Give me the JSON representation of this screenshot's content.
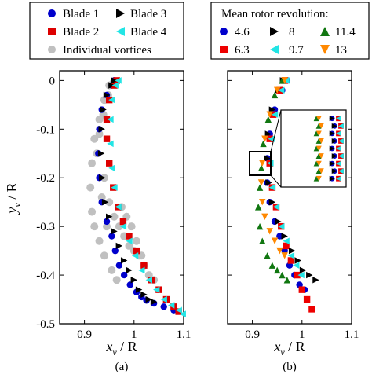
{
  "colors": {
    "blade1": "#0000cc",
    "blade2": "#dd0000",
    "blade3": "#000000",
    "blade4": "#22e5e5",
    "individual": "#c0c0c0",
    "rev46": "#0000cc",
    "rev63": "#ee0000",
    "rev8": "#000000",
    "rev97": "#22e5e5",
    "rev114": "#117711",
    "rev13": "#ff8800"
  },
  "chart_data": [
    {
      "type": "scatter",
      "panel_label": "(a)",
      "xlabel_var": "x",
      "xlabel_sub": "v",
      "xlabel_den": " / R",
      "ylabel_var": "y",
      "ylabel_sub": "v",
      "ylabel_den": " / R",
      "xlim": [
        0.85,
        1.1
      ],
      "ylim": [
        -0.5,
        0.02
      ],
      "xticks": [
        "0.9",
        "1",
        "1.1"
      ],
      "yticks": [
        "0",
        "-0.1",
        "-0.2",
        "-0.3",
        "-0.4",
        "-0.5"
      ],
      "legend": {
        "placement": "top",
        "entries": [
          "Blade 1",
          "Blade 3",
          "Blade 2",
          "Blade 4",
          "Individual vortices"
        ]
      },
      "series": [
        {
          "name": "Blade 1",
          "marker": "circle",
          "color": "#0000cc",
          "x": [
            0.96,
            0.955,
            0.945,
            0.935,
            0.93,
            0.928,
            0.93,
            0.935,
            0.945,
            0.955,
            0.962,
            0.97,
            0.98,
            0.992,
            1.005,
            1.015,
            1.025,
            1.04,
            1.06,
            1.08
          ],
          "y": [
            0.0,
            -0.01,
            -0.03,
            -0.06,
            -0.1,
            -0.15,
            -0.2,
            -0.25,
            -0.29,
            -0.32,
            -0.35,
            -0.38,
            -0.4,
            -0.42,
            -0.435,
            -0.445,
            -0.452,
            -0.458,
            -0.465,
            -0.472
          ]
        },
        {
          "name": "Blade 2",
          "marker": "square",
          "color": "#dd0000",
          "x": [
            0.965,
            0.96,
            0.95,
            0.945,
            0.945,
            0.95,
            0.958,
            0.968,
            0.978,
            0.99,
            1.005,
            1.02,
            1.035,
            1.05,
            1.065,
            1.08,
            1.09
          ],
          "y": [
            0.0,
            -0.01,
            -0.04,
            -0.08,
            -0.12,
            -0.17,
            -0.22,
            -0.26,
            -0.29,
            -0.32,
            -0.35,
            -0.38,
            -0.41,
            -0.43,
            -0.45,
            -0.465,
            -0.475
          ]
        },
        {
          "name": "Blade 3",
          "marker": "triangle-right",
          "color": "#000000",
          "x": [
            0.96,
            0.955,
            0.945,
            0.938,
            0.935,
            0.934,
            0.936,
            0.942,
            0.95,
            0.96,
            0.97,
            0.98,
            0.99,
            1.0,
            1.01,
            1.02,
            1.03,
            1.04
          ],
          "y": [
            0.0,
            -0.01,
            -0.03,
            -0.06,
            -0.1,
            -0.15,
            -0.2,
            -0.25,
            -0.28,
            -0.31,
            -0.34,
            -0.37,
            -0.39,
            -0.41,
            -0.43,
            -0.44,
            -0.45,
            -0.455
          ]
        },
        {
          "name": "Blade 4",
          "marker": "triangle-left",
          "color": "#22e5e5",
          "x": [
            0.968,
            0.962,
            0.955,
            0.952,
            0.952,
            0.955,
            0.96,
            0.968,
            0.978,
            0.99,
            1.002,
            1.015,
            1.03,
            1.045,
            1.06,
            1.075,
            1.09,
            1.098
          ],
          "y": [
            0.0,
            -0.01,
            -0.04,
            -0.08,
            -0.13,
            -0.18,
            -0.22,
            -0.26,
            -0.3,
            -0.33,
            -0.36,
            -0.39,
            -0.41,
            -0.43,
            -0.45,
            -0.462,
            -0.472,
            -0.48
          ]
        },
        {
          "name": "Individual vortices",
          "marker": "circle",
          "color": "#c0c0c0",
          "x": [
            0.95,
            0.94,
            0.93,
            0.92,
            0.915,
            0.912,
            0.915,
            0.92,
            0.93,
            0.94,
            0.955,
            0.965,
            0.94,
            0.95,
            0.96,
            0.97,
            0.98,
            0.99,
            1.0,
            1.01,
            1.02,
            0.935,
            0.945,
            0.975,
            0.985,
            0.995,
            1.005,
            1.015,
            1.03,
            1.04,
            0.925,
            0.93,
            0.938,
            0.948,
            0.958
          ],
          "y": [
            -0.01,
            -0.04,
            -0.08,
            -0.12,
            -0.17,
            -0.22,
            -0.27,
            -0.3,
            -0.33,
            -0.36,
            -0.39,
            -0.41,
            -0.2,
            -0.25,
            -0.28,
            -0.3,
            -0.32,
            -0.34,
            -0.35,
            -0.36,
            -0.38,
            -0.24,
            -0.3,
            -0.26,
            -0.28,
            -0.3,
            -0.33,
            -0.36,
            -0.4,
            -0.41,
            -0.15,
            -0.11,
            -0.07,
            -0.03,
            -0.005
          ]
        }
      ]
    },
    {
      "type": "scatter",
      "panel_label": "(b)",
      "xlabel_var": "x",
      "xlabel_sub": "v",
      "xlabel_den": " / R",
      "xlim": [
        0.85,
        1.1
      ],
      "ylim": [
        -0.5,
        0.02
      ],
      "xticks": [
        "0.9",
        "1",
        "1.1"
      ],
      "yticks": [
        "0",
        "-0.1",
        "-0.2",
        "-0.3",
        "-0.4",
        "-0.5"
      ],
      "legend": {
        "placement": "top",
        "title": "Mean rotor revolution:",
        "entries": [
          "4.6",
          "8",
          "11.4",
          "6.3",
          "9.7",
          "13"
        ]
      },
      "inset": {
        "zoom_xlim": [
          0.895,
          0.935
        ],
        "zoom_ylim": [
          -0.205,
          -0.155
        ]
      },
      "series": [
        {
          "name": "4.6",
          "marker": "circle",
          "color": "#0000cc",
          "x": [
            0.97,
            0.96,
            0.945,
            0.935,
            0.93,
            0.93,
            0.935,
            0.945,
            0.955,
            0.965,
            0.975,
            0.985,
            0.995,
            1.005
          ],
          "y": [
            0.0,
            -0.02,
            -0.06,
            -0.11,
            -0.16,
            -0.21,
            -0.25,
            -0.29,
            -0.32,
            -0.35,
            -0.38,
            -0.4,
            -0.42,
            -0.43
          ]
        },
        {
          "name": "6.3",
          "marker": "square",
          "color": "#ee0000",
          "x": [
            0.965,
            0.955,
            0.942,
            0.935,
            0.935,
            0.94,
            0.948,
            0.958,
            0.968,
            0.978,
            0.99,
            1.0,
            1.01,
            1.02
          ],
          "y": [
            0.0,
            -0.02,
            -0.07,
            -0.12,
            -0.17,
            -0.22,
            -0.26,
            -0.3,
            -0.34,
            -0.37,
            -0.4,
            -0.43,
            -0.45,
            -0.47
          ]
        },
        {
          "name": "8",
          "marker": "triangle-right",
          "color": "#000000",
          "x": [
            0.962,
            0.952,
            0.94,
            0.932,
            0.93,
            0.933,
            0.94,
            0.952,
            0.965,
            0.98,
            0.992,
            1.002,
            1.015,
            1.028
          ],
          "y": [
            0.0,
            -0.02,
            -0.06,
            -0.11,
            -0.16,
            -0.21,
            -0.25,
            -0.29,
            -0.32,
            -0.35,
            -0.37,
            -0.39,
            -0.4,
            -0.41
          ]
        },
        {
          "name": "9.7",
          "marker": "triangle-left",
          "color": "#22e5e5",
          "x": [
            0.968,
            0.958,
            0.945,
            0.938,
            0.936,
            0.94,
            0.948,
            0.958,
            0.968,
            0.978,
            0.988,
            0.998
          ],
          "y": [
            0.0,
            -0.02,
            -0.07,
            -0.12,
            -0.17,
            -0.22,
            -0.26,
            -0.3,
            -0.33,
            -0.36,
            -0.38,
            -0.4
          ]
        },
        {
          "name": "11.4",
          "marker": "triangle-up",
          "color": "#117711",
          "x": [
            0.96,
            0.945,
            0.932,
            0.922,
            0.918,
            0.915,
            0.912,
            0.915,
            0.92,
            0.93,
            0.94,
            0.95,
            0.96,
            0.97
          ],
          "y": [
            0.0,
            -0.03,
            -0.08,
            -0.13,
            -0.18,
            -0.22,
            -0.26,
            -0.3,
            -0.33,
            -0.36,
            -0.38,
            -0.39,
            -0.4,
            -0.41
          ]
        },
        {
          "name": "13",
          "marker": "triangle-down",
          "color": "#ff8800",
          "x": [
            0.965,
            0.95,
            0.935,
            0.925,
            0.92,
            0.918,
            0.92,
            0.925,
            0.935,
            0.945,
            0.955,
            0.965
          ],
          "y": [
            0.0,
            -0.02,
            -0.07,
            -0.12,
            -0.17,
            -0.21,
            -0.25,
            -0.28,
            -0.31,
            -0.33,
            -0.35,
            -0.36
          ]
        }
      ]
    }
  ]
}
